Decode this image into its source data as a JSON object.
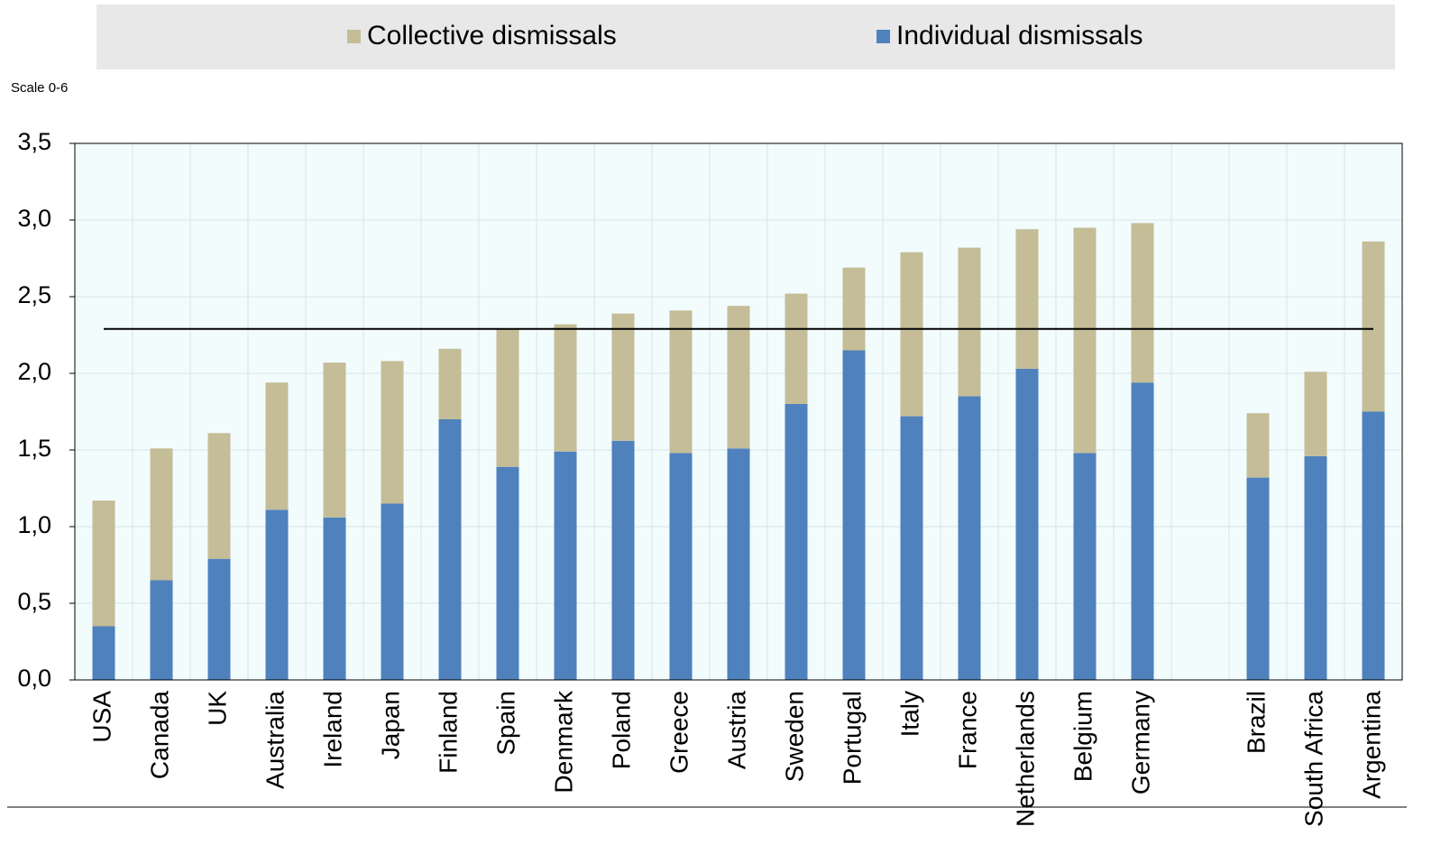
{
  "chart_data": {
    "type": "stacked_bar",
    "subtitle": "Scale 0-6",
    "categories": [
      "USA",
      "Canada",
      "UK",
      "Australia",
      "Ireland",
      "Japan",
      "Finland",
      "Spain",
      "Denmark",
      "Poland",
      "Greece",
      "Austria",
      "Sweden",
      "Portugal",
      "Italy",
      "France",
      "Netherlands",
      "Belgium",
      "Germany",
      null,
      "Brazil",
      "South Africa",
      "Argentina"
    ],
    "series": [
      {
        "name": "Collective dismissals",
        "color": "#c4bd97",
        "values": [
          0.82,
          0.86,
          0.82,
          0.83,
          1.01,
          0.93,
          0.46,
          0.9,
          0.83,
          0.83,
          0.93,
          0.93,
          0.72,
          0.54,
          1.07,
          0.97,
          0.91,
          1.47,
          1.04,
          null,
          0.42,
          0.55,
          1.11
        ]
      },
      {
        "name": "Individual dismissals",
        "color": "#4f81bd",
        "values": [
          0.35,
          0.65,
          0.79,
          1.11,
          1.06,
          1.15,
          1.7,
          1.39,
          1.49,
          1.56,
          1.48,
          1.51,
          1.8,
          2.15,
          1.72,
          1.85,
          2.03,
          1.48,
          1.94,
          null,
          1.32,
          1.46,
          1.75
        ]
      }
    ],
    "hline": 2.29,
    "ylim": [
      0,
      3.5
    ],
    "yticks": [
      {
        "value": 0,
        "label": "0,0"
      },
      {
        "value": 0.5,
        "label": "0,5"
      },
      {
        "value": 1,
        "label": "1,0"
      },
      {
        "value": 1.5,
        "label": "1,5"
      },
      {
        "value": 2,
        "label": "2,0"
      },
      {
        "value": 2.5,
        "label": "2,5"
      },
      {
        "value": 3,
        "label": "3,0"
      },
      {
        "value": 3.5,
        "label": "3,5"
      }
    ],
    "grid": true
  }
}
